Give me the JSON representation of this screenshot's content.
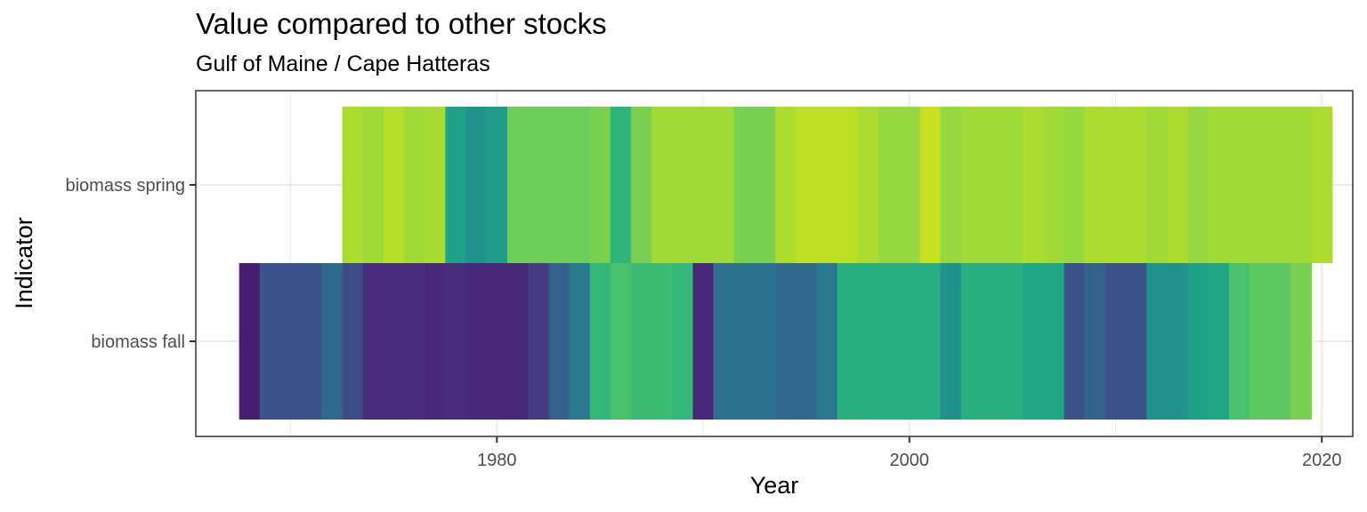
{
  "chart_data": {
    "type": "heatmap",
    "title": "Value compared to other stocks",
    "subtitle": "Gulf of Maine / Cape Hatteras",
    "xlabel": "Year",
    "ylabel": "Indicator",
    "xlim": [
      1965.4,
      2021.5
    ],
    "x_ticks": [
      1980,
      2000,
      2020
    ],
    "y_categories": [
      "biomass fall",
      "biomass spring"
    ],
    "grid": true,
    "legend": "none",
    "series": [
      {
        "name": "biomass spring",
        "cells": [
          {
            "year": 1973,
            "color": "#addc30"
          },
          {
            "year": 1974,
            "color": "#a0da39"
          },
          {
            "year": 1975,
            "color": "#b5de2b"
          },
          {
            "year": 1976,
            "color": "#a0da39"
          },
          {
            "year": 1977,
            "color": "#a8db34"
          },
          {
            "year": 1978,
            "color": "#1fa187"
          },
          {
            "year": 1979,
            "color": "#21918c"
          },
          {
            "year": 1980,
            "color": "#1e9c89"
          },
          {
            "year": 1981,
            "color": "#6ccd5a"
          },
          {
            "year": 1982,
            "color": "#6ccd5a"
          },
          {
            "year": 1983,
            "color": "#6ccd5a"
          },
          {
            "year": 1984,
            "color": "#6ccd5a"
          },
          {
            "year": 1985,
            "color": "#7ad151"
          },
          {
            "year": 1986,
            "color": "#2fb47c"
          },
          {
            "year": 1987,
            "color": "#7ad151"
          },
          {
            "year": 1988,
            "color": "#a0da39"
          },
          {
            "year": 1989,
            "color": "#a0da39"
          },
          {
            "year": 1990,
            "color": "#a0da39"
          },
          {
            "year": 1991,
            "color": "#a0da39"
          },
          {
            "year": 1992,
            "color": "#7ad151"
          },
          {
            "year": 1993,
            "color": "#7ad151"
          },
          {
            "year": 1994,
            "color": "#addc30"
          },
          {
            "year": 1995,
            "color": "#bddf26"
          },
          {
            "year": 1996,
            "color": "#bddf26"
          },
          {
            "year": 1997,
            "color": "#bddf26"
          },
          {
            "year": 1998,
            "color": "#addc30"
          },
          {
            "year": 1999,
            "color": "#95d840"
          },
          {
            "year": 2000,
            "color": "#95d840"
          },
          {
            "year": 2001,
            "color": "#c8e020"
          },
          {
            "year": 2002,
            "color": "#95d840"
          },
          {
            "year": 2003,
            "color": "#a0da39"
          },
          {
            "year": 2004,
            "color": "#a0da39"
          },
          {
            "year": 2005,
            "color": "#a0da39"
          },
          {
            "year": 2006,
            "color": "#addc30"
          },
          {
            "year": 2007,
            "color": "#a0da39"
          },
          {
            "year": 2008,
            "color": "#95d840"
          },
          {
            "year": 2009,
            "color": "#addc30"
          },
          {
            "year": 2010,
            "color": "#addc30"
          },
          {
            "year": 2011,
            "color": "#addc30"
          },
          {
            "year": 2012,
            "color": "#a0da39"
          },
          {
            "year": 2013,
            "color": "#addc30"
          },
          {
            "year": 2014,
            "color": "#95d840"
          },
          {
            "year": 2015,
            "color": "#a0da39"
          },
          {
            "year": 2016,
            "color": "#a0da39"
          },
          {
            "year": 2017,
            "color": "#a0da39"
          },
          {
            "year": 2018,
            "color": "#a0da39"
          },
          {
            "year": 2019,
            "color": "#a0da39"
          },
          {
            "year": 2020,
            "color": "#addc30"
          }
        ]
      },
      {
        "name": "biomass fall",
        "cells": [
          {
            "year": 1968,
            "color": "#471f72"
          },
          {
            "year": 1969,
            "color": "#3b528b"
          },
          {
            "year": 1970,
            "color": "#3b528b"
          },
          {
            "year": 1971,
            "color": "#3b528b"
          },
          {
            "year": 1972,
            "color": "#31688e"
          },
          {
            "year": 1973,
            "color": "#3e4c8a"
          },
          {
            "year": 1974,
            "color": "#472d7b"
          },
          {
            "year": 1975,
            "color": "#472d7b"
          },
          {
            "year": 1976,
            "color": "#472d7b"
          },
          {
            "year": 1977,
            "color": "#46277a"
          },
          {
            "year": 1978,
            "color": "#472d7b"
          },
          {
            "year": 1979,
            "color": "#46277a"
          },
          {
            "year": 1980,
            "color": "#472877"
          },
          {
            "year": 1981,
            "color": "#472877"
          },
          {
            "year": 1982,
            "color": "#443a83"
          },
          {
            "year": 1983,
            "color": "#355f8d"
          },
          {
            "year": 1984,
            "color": "#2a788e"
          },
          {
            "year": 1985,
            "color": "#35b779"
          },
          {
            "year": 1986,
            "color": "#4ac16d"
          },
          {
            "year": 1987,
            "color": "#3fbc73"
          },
          {
            "year": 1988,
            "color": "#3fbc73"
          },
          {
            "year": 1989,
            "color": "#35b779"
          },
          {
            "year": 1990,
            "color": "#46277a"
          },
          {
            "year": 1991,
            "color": "#2c728e"
          },
          {
            "year": 1992,
            "color": "#2c728e"
          },
          {
            "year": 1993,
            "color": "#2c728e"
          },
          {
            "year": 1994,
            "color": "#31688e"
          },
          {
            "year": 1995,
            "color": "#31688e"
          },
          {
            "year": 1996,
            "color": "#2a788e"
          },
          {
            "year": 1997,
            "color": "#2ab07f"
          },
          {
            "year": 1998,
            "color": "#2ab07f"
          },
          {
            "year": 1999,
            "color": "#28ae80"
          },
          {
            "year": 2000,
            "color": "#28ae80"
          },
          {
            "year": 2001,
            "color": "#28ae80"
          },
          {
            "year": 2002,
            "color": "#21918c"
          },
          {
            "year": 2003,
            "color": "#2ab07f"
          },
          {
            "year": 2004,
            "color": "#2ab07f"
          },
          {
            "year": 2005,
            "color": "#2ab07f"
          },
          {
            "year": 2006,
            "color": "#22a785"
          },
          {
            "year": 2007,
            "color": "#22a785"
          },
          {
            "year": 2008,
            "color": "#3b528b"
          },
          {
            "year": 2009,
            "color": "#33638d"
          },
          {
            "year": 2010,
            "color": "#3b528b"
          },
          {
            "year": 2011,
            "color": "#3b528b"
          },
          {
            "year": 2012,
            "color": "#21918c"
          },
          {
            "year": 2013,
            "color": "#21918c"
          },
          {
            "year": 2014,
            "color": "#1fa187"
          },
          {
            "year": 2015,
            "color": "#22a785"
          },
          {
            "year": 2016,
            "color": "#4ac16d"
          },
          {
            "year": 2017,
            "color": "#5ec962"
          },
          {
            "year": 2018,
            "color": "#5ec962"
          },
          {
            "year": 2019,
            "color": "#7ad151"
          }
        ]
      }
    ]
  }
}
